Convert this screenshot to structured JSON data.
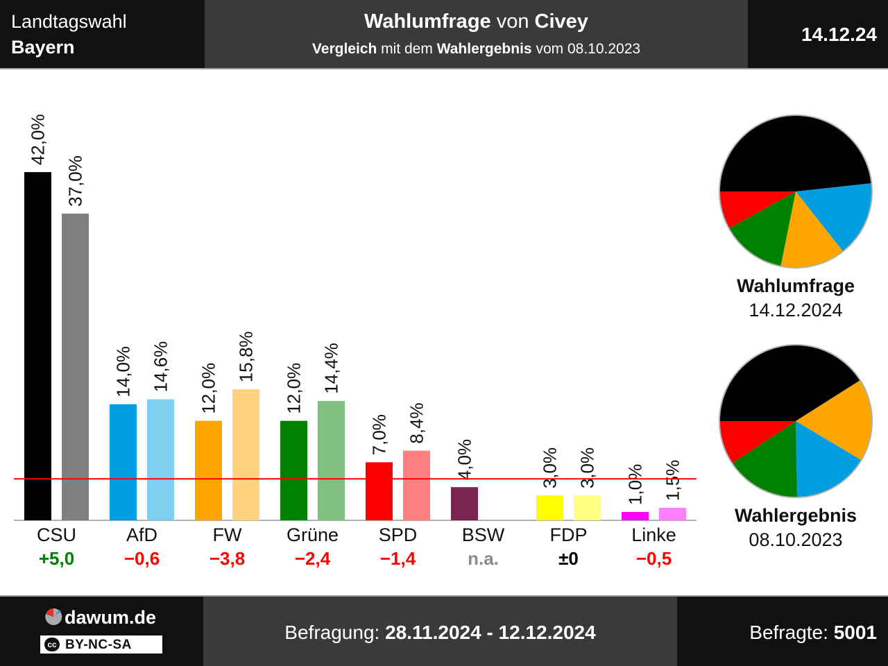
{
  "header": {
    "left_line1": "Landtagswahl",
    "left_line2": "Bayern",
    "title_bold1": "Wahlumfrage",
    "title_regular": "von",
    "title_bold2": "Civey",
    "sub_bold1": "Vergleich",
    "sub_regular1": "mit dem",
    "sub_bold2": "Wahlergebnis",
    "sub_regular2": "vom 08.10.2023",
    "date": "14.12.24"
  },
  "chart_data": {
    "type": "bar",
    "categories": [
      "CSU",
      "AfD",
      "FW",
      "Grüne",
      "SPD",
      "BSW",
      "FDP",
      "Linke"
    ],
    "series": [
      {
        "name": "Wahlumfrage 14.12.2024",
        "values": [
          42.0,
          14.0,
          12.0,
          12.0,
          7.0,
          4.0,
          3.0,
          1.0
        ],
        "labels": [
          "42,0%",
          "14,0%",
          "12,0%",
          "12,0%",
          "7,0%",
          "4,0%",
          "3,0%",
          "1,0%"
        ]
      },
      {
        "name": "Wahlergebnis 08.10.2023",
        "values": [
          37.0,
          14.6,
          15.8,
          14.4,
          8.4,
          null,
          3.0,
          1.5
        ],
        "labels": [
          "37,0%",
          "14,6%",
          "15,8%",
          "14,4%",
          "8,4%",
          "",
          "3,0%",
          "1,5%"
        ]
      }
    ],
    "changes": [
      "+5,0",
      "−0,6",
      "−3,8",
      "−2,4",
      "−1,4",
      "n.a.",
      "±0",
      "−0,5"
    ],
    "threshold": 5.0,
    "colors_current": [
      "#000000",
      "#009ee0",
      "#ffa500",
      "#008000",
      "#ff0000",
      "#7b2450",
      "#ffff00",
      "#ff00ff"
    ],
    "colors_previous": [
      "#808080",
      "#80cef0",
      "#ffd280",
      "#80c080",
      "#ff8080",
      "#bd92a8",
      "#ffff80",
      "#ff80ff"
    ],
    "change_colors": [
      "#008000",
      "#ff0000",
      "#ff0000",
      "#ff0000",
      "#ff0000",
      "#8c8c8c",
      "#000000",
      "#ff0000"
    ],
    "pies": [
      {
        "title": "Wahlumfrage",
        "date": "14.12.2024",
        "slices": [
          {
            "party": "CSU",
            "value": 42.0,
            "color": "#000000"
          },
          {
            "party": "AfD",
            "value": 14.0,
            "color": "#009ee0"
          },
          {
            "party": "FW",
            "value": 12.0,
            "color": "#ffa500"
          },
          {
            "party": "Grüne",
            "value": 12.0,
            "color": "#008000"
          },
          {
            "party": "SPD",
            "value": 7.0,
            "color": "#ff0000"
          }
        ]
      },
      {
        "title": "Wahlergebnis",
        "date": "08.10.2023",
        "slices": [
          {
            "party": "CSU",
            "value": 37.0,
            "color": "#000000"
          },
          {
            "party": "FW",
            "value": 15.8,
            "color": "#ffa500"
          },
          {
            "party": "AfD",
            "value": 14.6,
            "color": "#009ee0"
          },
          {
            "party": "Grüne",
            "value": 14.4,
            "color": "#008000"
          },
          {
            "party": "SPD",
            "value": 8.4,
            "color": "#ff0000"
          }
        ]
      }
    ]
  },
  "footer": {
    "site": "dawum.de",
    "license": "BY-NC-SA",
    "cc": "cc",
    "survey_label": "Befragung:",
    "survey_period": "28.11.2024 - 12.12.2024",
    "respondents_label": "Befragte:",
    "respondents": "5001"
  }
}
